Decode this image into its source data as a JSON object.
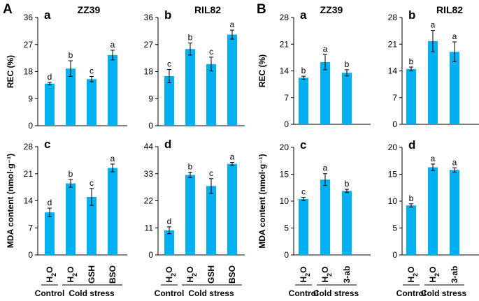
{
  "figure": {
    "panel_letters": [
      "A",
      "B"
    ],
    "colors": {
      "bar": "#00B0F0",
      "axis": "#000000"
    },
    "groups": {
      "control": "Control",
      "cold": "Cold stress"
    }
  },
  "chart_data": [
    {
      "id": "A-a",
      "type": "bar",
      "sub": "a",
      "title": "ZZ39",
      "ylabel": "REC (%)",
      "ylim": [
        0,
        36
      ],
      "yticks": [
        0,
        9,
        18,
        27,
        36
      ],
      "categories": [
        "H2O",
        "H2O",
        "GSH",
        "BSO"
      ],
      "values": [
        14,
        19,
        15.5,
        23.5
      ],
      "errors": [
        0.4,
        2.6,
        0.9,
        1.6
      ],
      "letters": [
        "d",
        "b",
        "c",
        "a"
      ]
    },
    {
      "id": "A-b",
      "type": "bar",
      "sub": "b",
      "title": "RIL82",
      "ylabel": "",
      "ylim": [
        0,
        36
      ],
      "yticks": [
        0,
        9,
        18,
        27,
        36
      ],
      "categories": [
        "H2O",
        "H2O",
        "GSH",
        "BSO"
      ],
      "values": [
        16.5,
        25.5,
        20.5,
        30.3
      ],
      "errors": [
        2.2,
        2.0,
        2.3,
        1.5
      ],
      "letters": [
        "c",
        "b",
        "c",
        "a"
      ]
    },
    {
      "id": "A-c",
      "type": "bar",
      "sub": "c",
      "title": "",
      "ylabel": "MDA content  (nmol·g⁻¹)",
      "ylim": [
        0,
        28
      ],
      "yticks": [
        0,
        7,
        14,
        21,
        28
      ],
      "categories": [
        "H2O",
        "H2O",
        "GSH",
        "BSO"
      ],
      "values": [
        11,
        18.5,
        15,
        22.5
      ],
      "errors": [
        1.1,
        1.0,
        2.2,
        1.0
      ],
      "letters": [
        "d",
        "b",
        "c",
        "a"
      ]
    },
    {
      "id": "A-d",
      "type": "bar",
      "sub": "d",
      "title": "",
      "ylabel": "",
      "ylim": [
        0,
        44
      ],
      "yticks": [
        0,
        11,
        22,
        33,
        44
      ],
      "categories": [
        "H2O",
        "H2O",
        "GSH",
        "BSO"
      ],
      "values": [
        10,
        32.5,
        28,
        37
      ],
      "errors": [
        1.4,
        1.1,
        3.0,
        0.6
      ],
      "letters": [
        "d",
        "b",
        "c",
        "a"
      ]
    },
    {
      "id": "B-a",
      "type": "bar",
      "sub": "a",
      "title": "ZZ39",
      "ylabel": "REC (%)",
      "ylim": [
        0,
        28
      ],
      "yticks": [
        0,
        7,
        14,
        21,
        28
      ],
      "categories": [
        "H2O",
        "H2O",
        "3-ab"
      ],
      "values": [
        12.2,
        16.3,
        13.5
      ],
      "errors": [
        0.4,
        2.0,
        0.8
      ],
      "letters": [
        "b",
        "a",
        "b"
      ]
    },
    {
      "id": "B-b",
      "type": "bar",
      "sub": "b",
      "title": "RIL82",
      "ylabel": "",
      "ylim": [
        0,
        28
      ],
      "yticks": [
        0,
        7,
        14,
        21,
        28
      ],
      "categories": [
        "H2O",
        "H2O",
        "3-ab"
      ],
      "values": [
        14.5,
        21.8,
        19
      ],
      "errors": [
        0.5,
        2.8,
        2.6
      ],
      "letters": [
        "b",
        "a",
        "a"
      ]
    },
    {
      "id": "B-c",
      "type": "bar",
      "sub": "c",
      "title": "",
      "ylabel": "MDA content  (nmol·g⁻¹)",
      "ylim": [
        0,
        20
      ],
      "yticks": [
        0,
        5,
        10,
        15,
        20
      ],
      "categories": [
        "H2O",
        "H2O",
        "3-ab"
      ],
      "values": [
        10.4,
        14,
        11.9
      ],
      "errors": [
        0.3,
        1.1,
        0.3
      ],
      "letters": [
        "c",
        "a",
        "b"
      ]
    },
    {
      "id": "B-d",
      "type": "bar",
      "sub": "d",
      "title": "",
      "ylabel": "",
      "ylim": [
        0,
        20
      ],
      "yticks": [
        0,
        5,
        10,
        15,
        20
      ],
      "categories": [
        "H2O",
        "H2O",
        "3-ab"
      ],
      "values": [
        9.2,
        16.3,
        15.8
      ],
      "errors": [
        0.3,
        0.6,
        0.4
      ],
      "letters": [
        "b",
        "a",
        "a"
      ]
    }
  ]
}
